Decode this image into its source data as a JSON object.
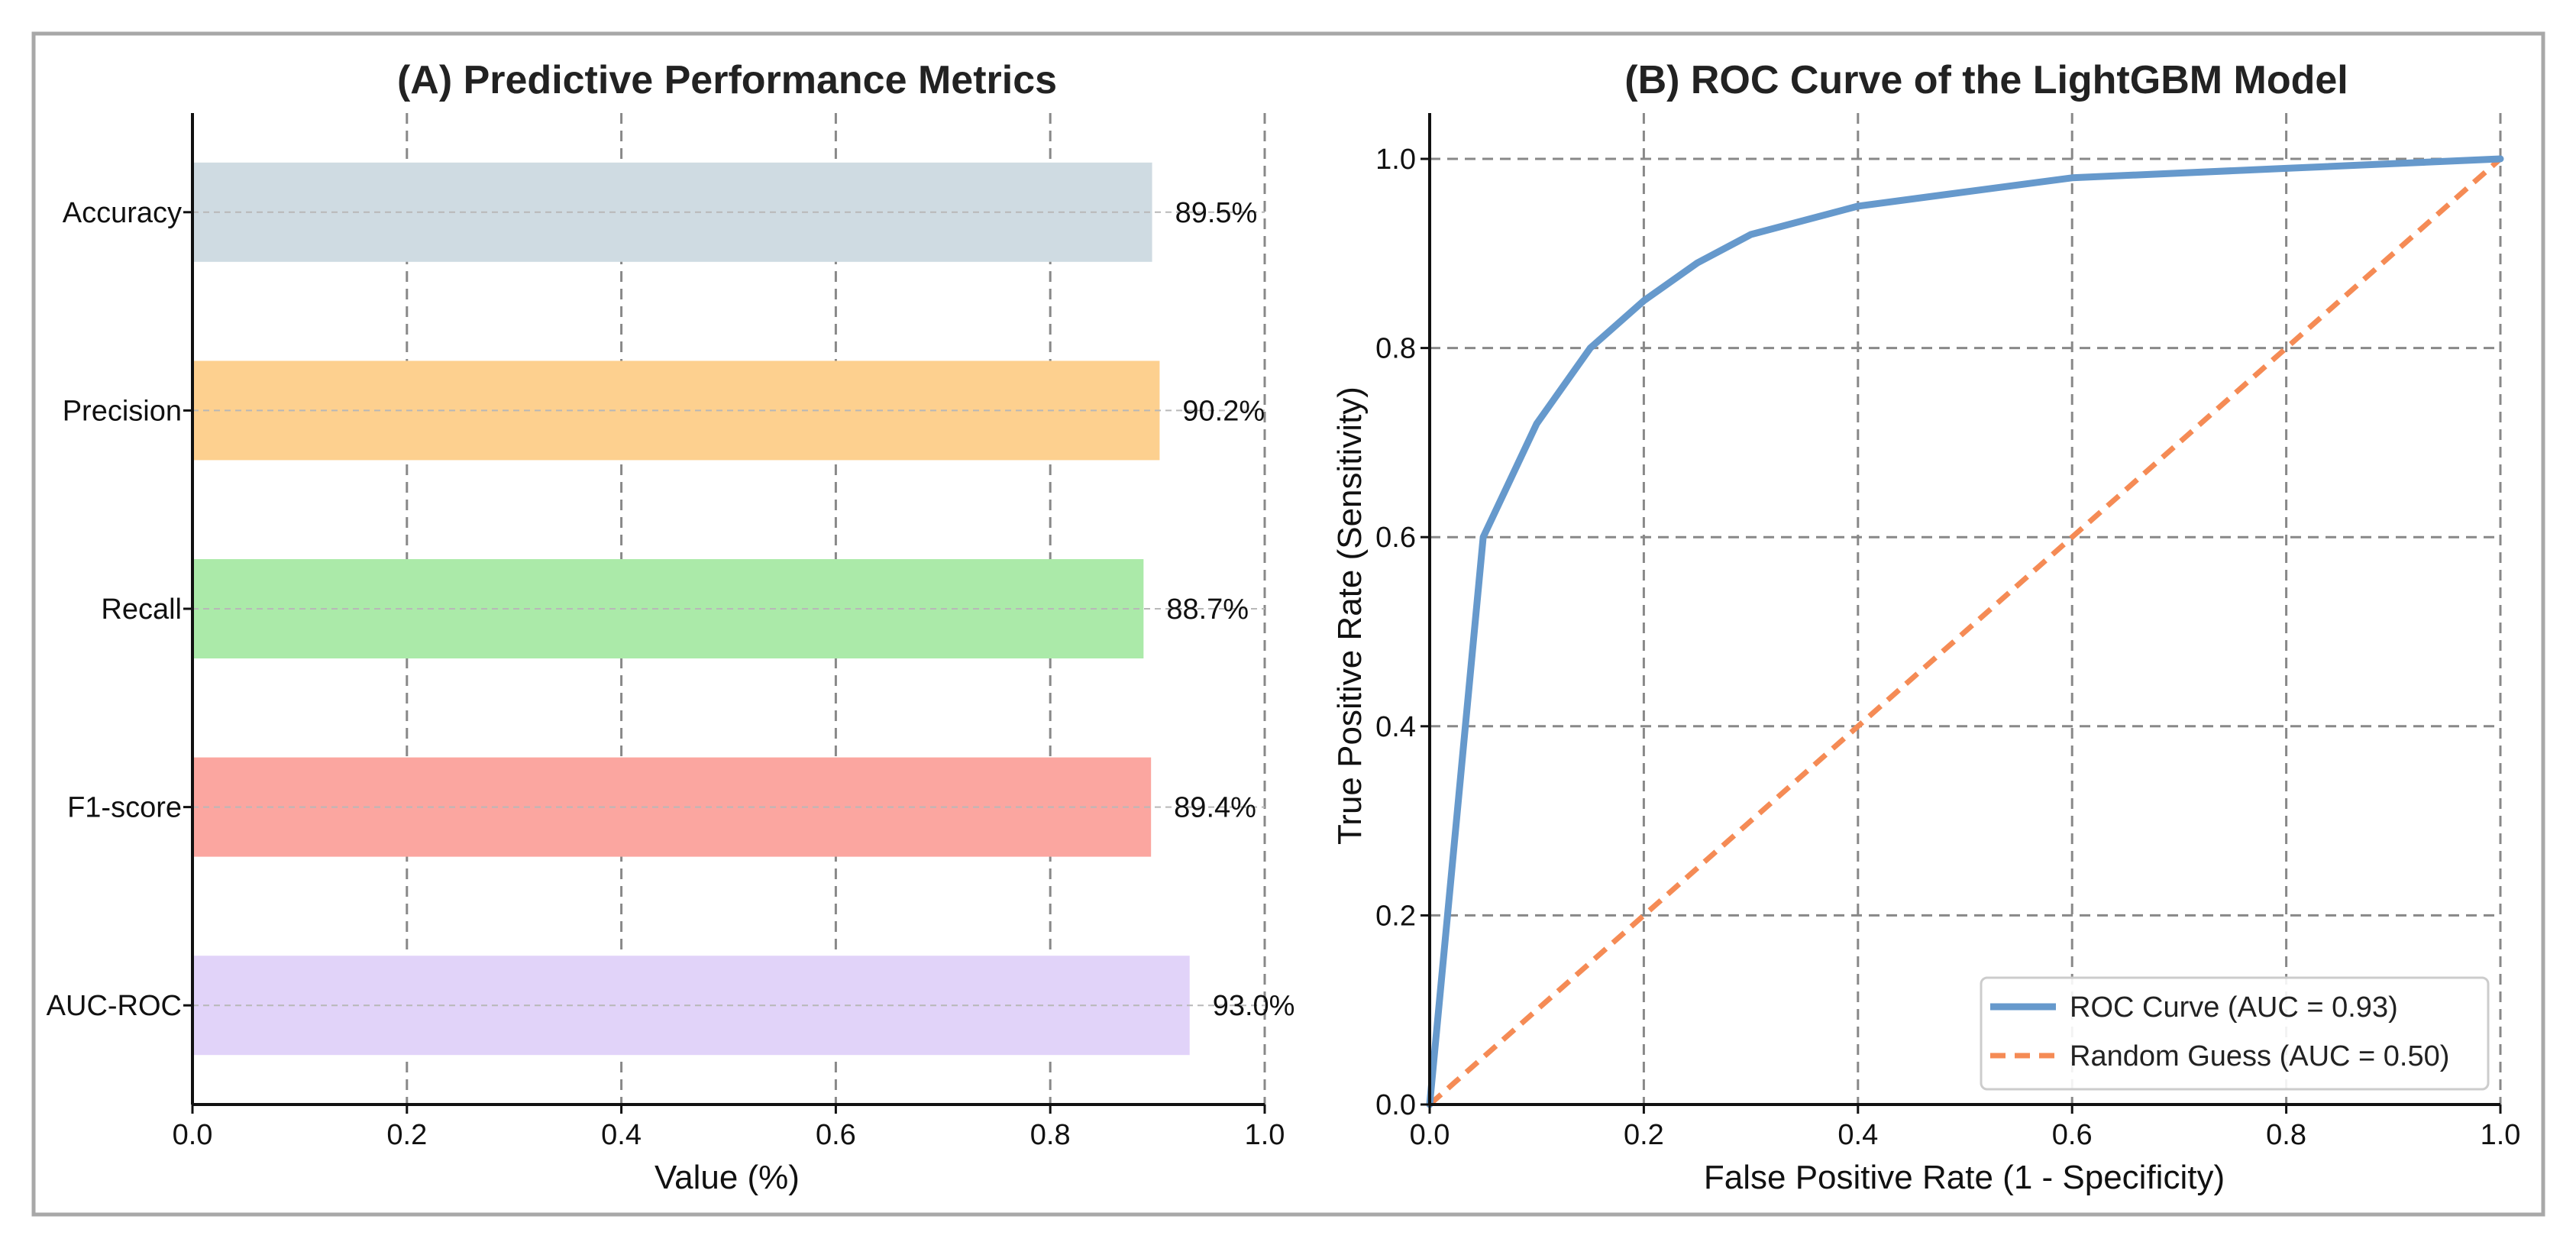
{
  "chart_data": [
    {
      "type": "bar",
      "orientation": "horizontal",
      "title": "(A) Predictive Performance Metrics",
      "xlabel": "Value (%)",
      "ylabel": "",
      "xlim": [
        0,
        1
      ],
      "xticks": [
        "0.0",
        "0.2",
        "0.4",
        "0.6",
        "0.8",
        "1.0"
      ],
      "grid": "vertical dashed",
      "categories": [
        "Accuracy",
        "Precision",
        "Recall",
        "F1-score",
        "AUC-ROC"
      ],
      "values": [
        0.895,
        0.902,
        0.887,
        0.894,
        0.93
      ],
      "value_labels": [
        "89.5%",
        "90.2%",
        "88.7%",
        "89.4%",
        "93.0%"
      ],
      "colors": [
        "#cfdbe2",
        "#fdd08f",
        "#abeaa9",
        "#fba6a0",
        "#e1d3f9"
      ]
    },
    {
      "type": "line",
      "title": "(B) ROC Curve of the LightGBM Model",
      "xlabel": "False Positive Rate (1 - Specificity)",
      "ylabel": "True Positive Rate (Sensitivity)",
      "xlim": [
        0,
        1
      ],
      "ylim": [
        0,
        1
      ],
      "xticks": [
        "0.0",
        "0.2",
        "0.4",
        "0.6",
        "0.8",
        "1.0"
      ],
      "yticks": [
        "0.0",
        "0.2",
        "0.4",
        "0.6",
        "0.8",
        "1.0"
      ],
      "grid": "dashed",
      "legend": "bottom-right",
      "series": [
        {
          "name": "ROC Curve (AUC = 0.93)",
          "color": "#6699cc",
          "style": "solid",
          "x": [
            0.0,
            0.05,
            0.1,
            0.15,
            0.2,
            0.25,
            0.3,
            0.4,
            0.5,
            0.6,
            0.8,
            1.0
          ],
          "y": [
            0.0,
            0.6,
            0.72,
            0.8,
            0.85,
            0.89,
            0.92,
            0.95,
            0.965,
            0.98,
            0.99,
            1.0
          ]
        },
        {
          "name": "Random Guess (AUC = 0.50)",
          "color": "#f58b55",
          "style": "dashed",
          "x": [
            0.0,
            1.0
          ],
          "y": [
            0.0,
            1.0
          ]
        }
      ]
    }
  ]
}
